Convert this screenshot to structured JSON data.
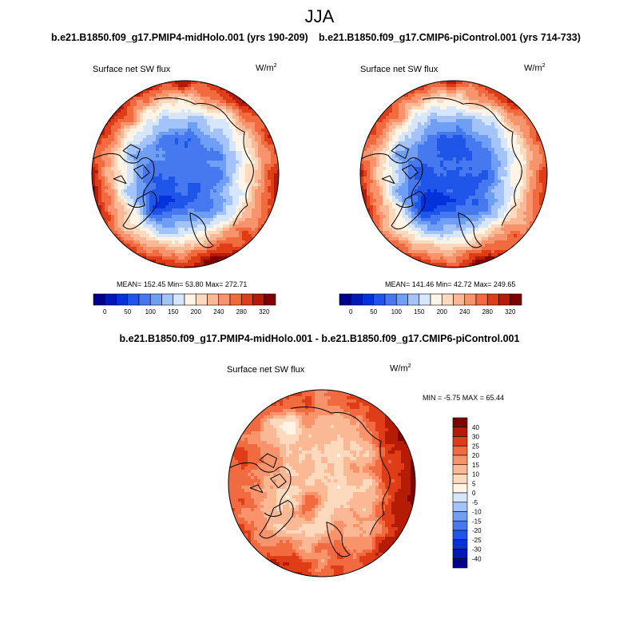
{
  "season": "JJA",
  "chart_data": [
    {
      "type": "heatmap",
      "projection": "north polar stereographic",
      "case_title": "b.e21.B1850.f09_g17.PMIP4-midHolo.001 (yrs 190-209)",
      "variable": "Surface net SW flux",
      "units": "W/m",
      "units_exp": "2",
      "stats": "MEAN= 152.45  Min=  53.80  Max= 272.71",
      "mean": 152.45,
      "min": 53.8,
      "max": 272.71,
      "colorbar_labels": [
        "0",
        "50",
        "100",
        "150",
        "200",
        "240",
        "280",
        "320"
      ],
      "colorbar_levels": [
        0,
        25,
        50,
        75,
        100,
        125,
        150,
        175,
        200,
        220,
        240,
        260,
        280,
        300,
        320
      ]
    },
    {
      "type": "heatmap",
      "projection": "north polar stereographic",
      "case_title": "b.e21.B1850.f09_g17.CMIP6-piControl.001 (yrs 714-733)",
      "variable": "Surface net SW flux",
      "units": "W/m",
      "units_exp": "2",
      "stats": "MEAN= 141.46  Min=  42.72  Max= 249.65",
      "mean": 141.46,
      "min": 42.72,
      "max": 249.65,
      "colorbar_labels": [
        "0",
        "50",
        "100",
        "150",
        "200",
        "240",
        "280",
        "320"
      ],
      "colorbar_levels": [
        0,
        25,
        50,
        75,
        100,
        125,
        150,
        175,
        200,
        220,
        240,
        260,
        280,
        300,
        320
      ]
    },
    {
      "type": "heatmap",
      "projection": "north polar stereographic",
      "case_title": "b.e21.B1850.f09_g17.PMIP4-midHolo.001 - b.e21.B1850.f09_g17.CMIP6-piControl.001",
      "variable": "Surface net SW flux",
      "units": "W/m",
      "units_exp": "2",
      "stats": "MIN =  -5.75 MAX =  65.44",
      "min": -5.75,
      "max": 65.44,
      "colorbar_labels": [
        "40",
        "30",
        "25",
        "20",
        "15",
        "10",
        "5",
        "0",
        "-5",
        "-10",
        "-15",
        "-20",
        "-25",
        "-30",
        "-40"
      ],
      "colorbar_levels": [
        -40,
        -30,
        -25,
        -20,
        -15,
        -10,
        -5,
        0,
        5,
        10,
        15,
        20,
        25,
        30,
        40
      ]
    }
  ],
  "colors": {
    "seq_cmap": [
      "#00008c",
      "#0018b4",
      "#0033d9",
      "#1f55e8",
      "#4678ef",
      "#6f9ef5",
      "#a3c3fa",
      "#d5e6fd",
      "#fff4e6",
      "#fdd9bd",
      "#fbb894",
      "#f8936b",
      "#f26a3f",
      "#df3d17",
      "#b51b05",
      "#800000"
    ],
    "div_cmap": [
      "#00008c",
      "#0018b4",
      "#0033d9",
      "#1f55e8",
      "#4678ef",
      "#6f9ef5",
      "#a3c3fa",
      "#d5e6fd",
      "#fff4e6",
      "#fdd9bd",
      "#fbb894",
      "#f8936b",
      "#f26a3f",
      "#df3d17",
      "#b51b05",
      "#800000"
    ]
  }
}
